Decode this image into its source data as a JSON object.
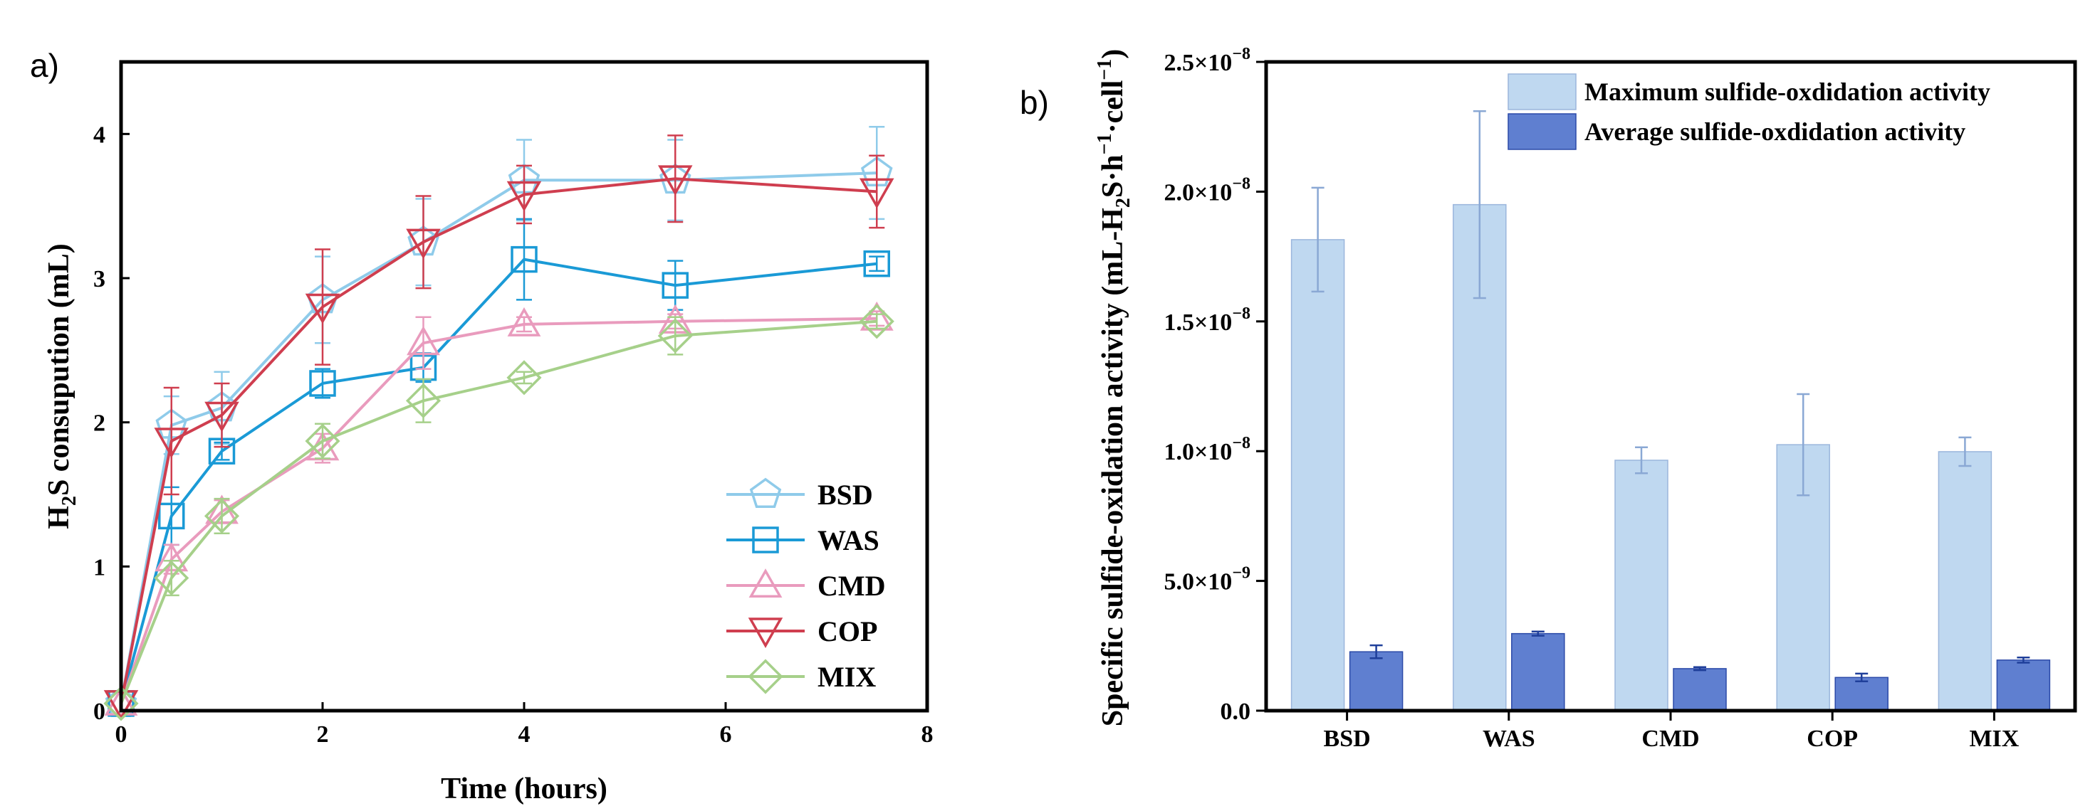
{
  "panels": {
    "a": "a)",
    "b": "b)"
  },
  "chart_data": [
    {
      "type": "line",
      "xlabel": "Time (hours)",
      "ylabel": {
        "main": "H",
        "sub": "2",
        "rest": "S consupution (mL)"
      },
      "xlim": [
        0,
        8
      ],
      "ylim": [
        0,
        4.5
      ],
      "xticks": [
        "0",
        "2",
        "4",
        "6",
        "8"
      ],
      "yticks": [
        "0",
        "1",
        "2",
        "3",
        "4"
      ],
      "legend_position": "bottom-right",
      "x": [
        0,
        0.5,
        1,
        2,
        3,
        4,
        5.5,
        7.5
      ],
      "series": [
        {
          "name": "BSD",
          "color": "#8fcbea",
          "marker": "pentagon",
          "values": [
            0.05,
            1.98,
            2.1,
            2.85,
            3.25,
            3.68,
            3.68,
            3.73
          ],
          "errors": [
            0,
            0.2,
            0.25,
            0.3,
            0.3,
            0.28,
            0.28,
            0.32
          ]
        },
        {
          "name": "WAS",
          "color": "#1a9ad6",
          "marker": "square",
          "values": [
            0.05,
            1.35,
            1.8,
            2.27,
            2.38,
            3.13,
            2.95,
            3.1
          ],
          "errors": [
            0,
            0.2,
            0.06,
            0.1,
            0.1,
            0.28,
            0.17,
            0.05
          ]
        },
        {
          "name": "CMD",
          "color": "#e99bbd",
          "marker": "triangle-up",
          "values": [
            0.05,
            1.05,
            1.38,
            1.82,
            2.55,
            2.68,
            2.7,
            2.72
          ],
          "errors": [
            0,
            0.1,
            0.08,
            0.1,
            0.18,
            0.05,
            0.05,
            0.05
          ]
        },
        {
          "name": "COP",
          "color": "#cf3e4f",
          "marker": "triangle-down",
          "values": [
            0.05,
            1.87,
            2.05,
            2.8,
            3.25,
            3.58,
            3.69,
            3.6
          ],
          "errors": [
            0,
            0.37,
            0.22,
            0.4,
            0.32,
            0.2,
            0.3,
            0.25
          ]
        },
        {
          "name": "MIX",
          "color": "#a6d08a",
          "marker": "diamond",
          "values": [
            0.05,
            0.92,
            1.35,
            1.87,
            2.15,
            2.31,
            2.6,
            2.7
          ],
          "errors": [
            0,
            0.12,
            0.12,
            0.12,
            0.15,
            0.04,
            0.13,
            0.05
          ]
        }
      ]
    },
    {
      "type": "bar",
      "ylabel": {
        "main": "Specific sulfide-oxidation activity (mL-H",
        "sub": "2",
        "mid": "S·h",
        "sup1": "−1",
        "mid2": "·cell",
        "sup2": "−1",
        "end": ")"
      },
      "categories": [
        "BSD",
        "WAS",
        "CMD",
        "COP",
        "MIX"
      ],
      "ylim": [
        0,
        2.5e-08
      ],
      "yticks": [
        {
          "base": "0.0",
          "exp": ""
        },
        {
          "base": "5.0×10",
          "exp": "−9"
        },
        {
          "base": "1.0×10",
          "exp": "−8"
        },
        {
          "base": "1.5×10",
          "exp": "−8"
        },
        {
          "base": "2.0×10",
          "exp": "−8"
        },
        {
          "base": "2.5×10",
          "exp": "−8"
        }
      ],
      "legend_position": "top-right",
      "series": [
        {
          "name": "Maximum sulfide-oxdidation activity",
          "color": "#bfd8f0",
          "edge": "#9bb6dc",
          "values": [
            1.815e-08,
            1.95e-08,
            9.65e-09,
            1.025e-08,
            9.98e-09
          ],
          "errors": [
            2e-09,
            3.6e-09,
            5e-10,
            1.95e-09,
            5.5e-10
          ]
        },
        {
          "name": "Average sulfide-oxdidation activity",
          "color": "#5f7fd0",
          "edge": "#2c4aa8",
          "values": [
            2.27e-09,
            2.97e-09,
            1.62e-09,
            1.28e-09,
            1.95e-09
          ],
          "errors": [
            2.5e-10,
            8e-11,
            6e-11,
            1.5e-10,
            1e-10
          ]
        }
      ]
    }
  ]
}
